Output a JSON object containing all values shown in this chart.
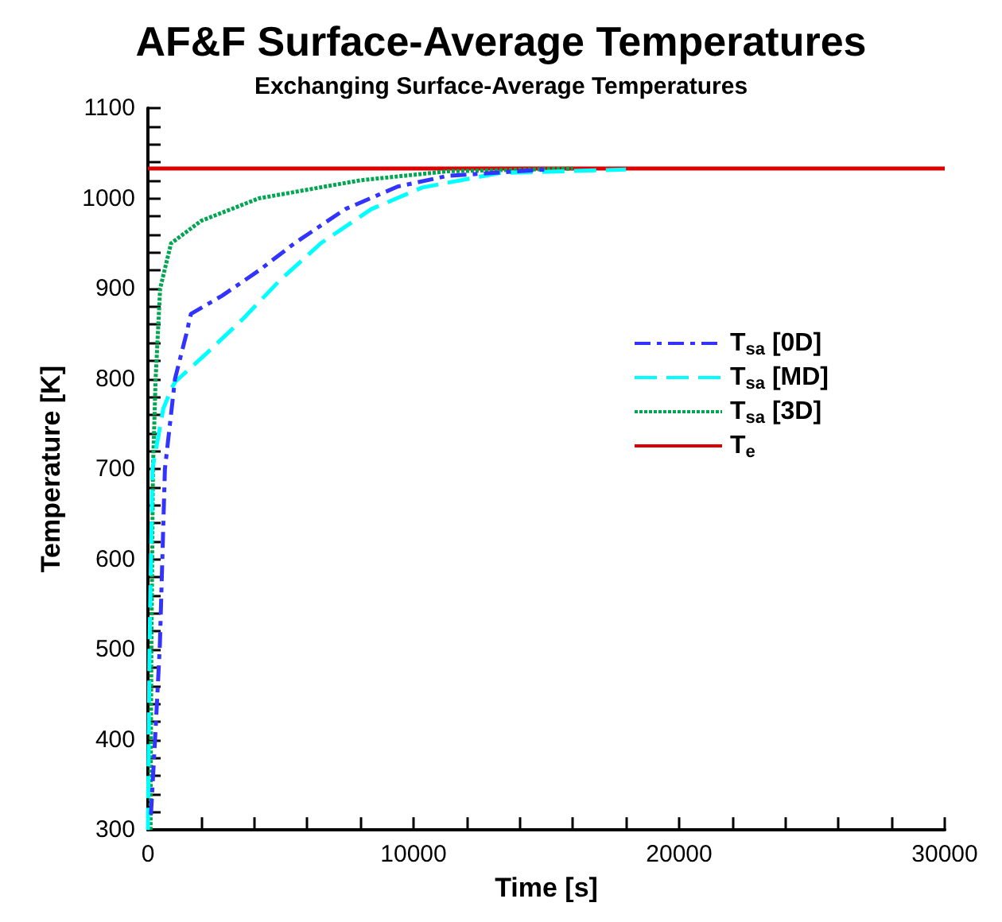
{
  "chart_data": {
    "type": "line",
    "title": "AF&F Surface-Average Temperatures",
    "subtitle": "Exchanging Surface-Average Temperatures",
    "xlabel": "Time [s]",
    "ylabel": "Temperature [K]",
    "xlim": [
      0,
      30000
    ],
    "xticks": [
      0,
      10000,
      20000,
      30000
    ],
    "ylim": [
      300,
      1100
    ],
    "yticks": [
      300,
      400,
      500,
      600,
      700,
      800,
      900,
      1000,
      1100
    ],
    "grid": false,
    "legend": "right",
    "marker": "none",
    "series": [
      {
        "name": "T$_{sa}$ [0D]",
        "color": "#3333ff",
        "line_style": "dashdot",
        "x": [
          115,
          290,
          450,
          640,
          1020,
          1450,
          1620,
          2790,
          4180,
          5510,
          7430,
          9400,
          11300,
          15000
        ],
        "values": [
          317,
          412,
          505,
          700,
          800,
          850,
          872,
          892,
          920,
          950,
          988,
          1013,
          1025,
          1032
        ]
      },
      {
        "name": "T$_{sa}$ [MD]",
        "color": "#00ffff",
        "line_style": "dashed",
        "x": [
          0,
          60,
          170,
          580,
          900,
          1040,
          2200,
          3600,
          4930,
          6500,
          8410,
          10330,
          13230,
          18000
        ],
        "values": [
          300,
          500,
          700,
          767,
          790,
          797,
          828,
          867,
          908,
          950,
          988,
          1012,
          1028,
          1032
        ]
      },
      {
        "name": "T$_{sa}$ [3D]",
        "color": "#00a651",
        "line_style": "dotted",
        "x": [
          100,
          130,
          190,
          290,
          460,
          870,
          2000,
          4180,
          8000,
          11300,
          16000
        ],
        "values": [
          300,
          500,
          700,
          800,
          900,
          950,
          975,
          1000,
          1020,
          1030,
          1033
        ]
      },
      {
        "name": "T$_{e}$",
        "color": "#dd0000",
        "line_style": "solid",
        "x": [
          0,
          30000
        ],
        "values": [
          1033,
          1033
        ]
      }
    ]
  }
}
